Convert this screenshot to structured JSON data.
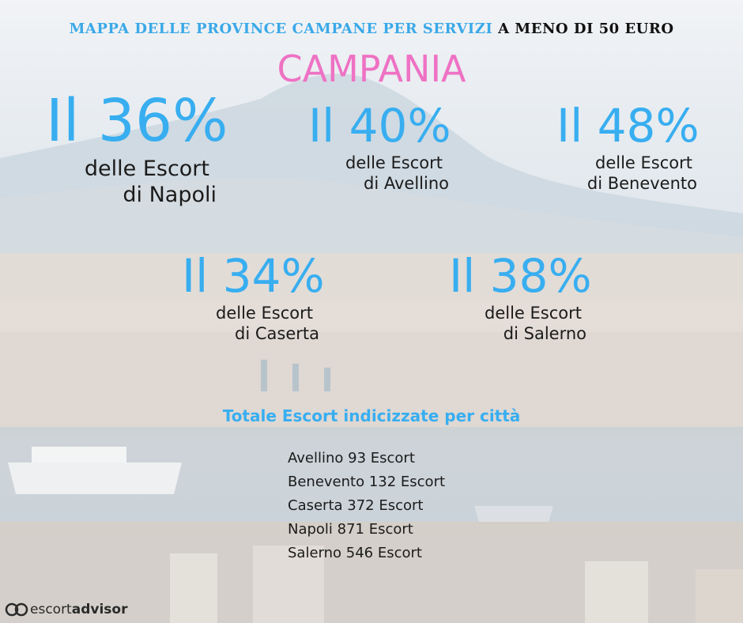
{
  "header": {
    "title_part1": "MAPPA DELLE PROVINCE CAMPANE PER SERVIZI",
    "title_part2": "A MENO DI 50 EURO",
    "region": "CAMPANIA"
  },
  "stats": [
    {
      "percent": "Il 36%",
      "line1": "delle Escort",
      "line2": "di Napoli"
    },
    {
      "percent": "Il 40%",
      "line1": "delle Escort",
      "line2": "di Avellino"
    },
    {
      "percent": "Il 48%",
      "line1": "delle Escort",
      "line2": "di Benevento"
    },
    {
      "percent": "Il 34%",
      "line1": "delle Escort",
      "line2": "di Caserta"
    },
    {
      "percent": "Il 38%",
      "line1": "delle Escort",
      "line2": "di Salerno"
    }
  ],
  "totals": {
    "title": "Totale Escort indicizzate per città",
    "items": [
      "Avellino 93 Escort",
      "Benevento 132 Escort",
      "Caserta 372 Escort",
      "Napoli 871 Escort",
      "Salerno 546 Escort"
    ]
  },
  "logo": {
    "word1": "escort",
    "word2": "advisor"
  },
  "colors": {
    "accent_blue": "#38aef0",
    "accent_pink": "#ee72c4",
    "text": "#1b1b1b"
  }
}
